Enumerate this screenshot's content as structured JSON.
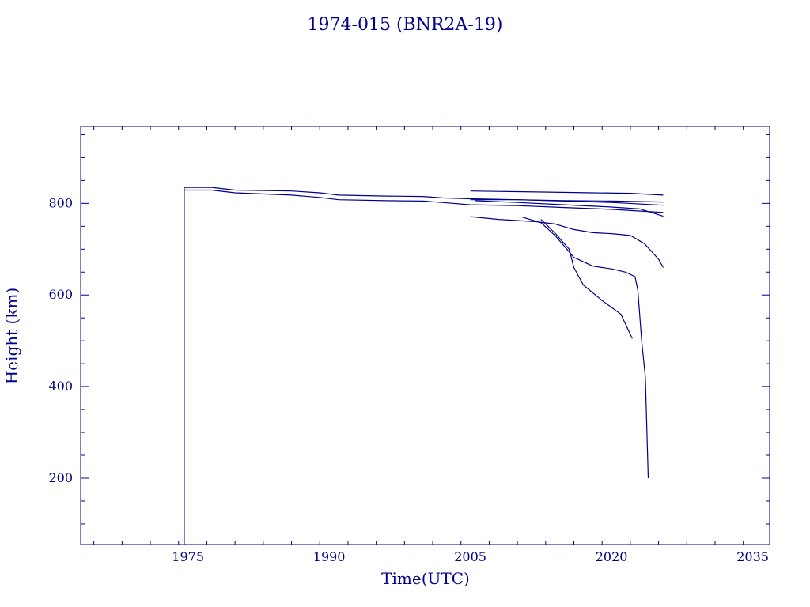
{
  "chart_data": {
    "type": "line",
    "title": "1974-015 (BNR2A-19)",
    "xlabel": "Time(UTC)",
    "ylabel": "Height (km)",
    "xlim": [
      1963.6,
      2036.8
    ],
    "ylim": [
      55,
      968
    ],
    "x_ticks": [
      1975,
      1990,
      2005,
      2020,
      2035
    ],
    "x_tick_labels": [
      "1975",
      "1990",
      "2005",
      "2020",
      "2035"
    ],
    "y_ticks": [
      200,
      400,
      600,
      800
    ],
    "y_tick_labels": [
      "200",
      "400",
      "600",
      "800"
    ],
    "grid": false,
    "color": "#00008b",
    "series": [
      {
        "x": [
          1974.6,
          1974.6,
          1977.5,
          1980,
          1986,
          1989,
          1991,
          1996,
          2000,
          2002,
          2005,
          2010,
          2015,
          2020,
          2025.5
        ],
        "y": [
          55,
          835,
          835,
          829,
          827,
          823,
          818,
          816,
          815,
          812,
          810,
          808,
          805,
          802,
          796
        ]
      },
      {
        "x": [
          1974.6,
          1977.5,
          1980,
          1986,
          1989,
          1991,
          1996,
          2000,
          2002,
          2005,
          2010,
          2015,
          2020,
          2025.5
        ],
        "y": [
          829,
          829,
          823,
          818,
          813,
          808,
          806,
          805,
          802,
          797,
          795,
          791,
          787,
          780
        ]
      },
      {
        "x": [
          2005,
          2012,
          2018,
          2022,
          2025.5
        ],
        "y": [
          827,
          825,
          823,
          822,
          818
        ]
      },
      {
        "x": [
          2005,
          2010,
          2015,
          2020,
          2025.5
        ],
        "y": [
          808,
          808,
          806,
          805,
          803
        ]
      },
      {
        "x": [
          2005.5,
          2010,
          2015,
          2020,
          2023,
          2025.5
        ],
        "y": [
          806,
          802,
          797,
          792,
          788,
          772
        ]
      },
      {
        "x": [
          2005,
          2008,
          2012,
          2014,
          2016,
          2018,
          2020,
          2022,
          2023.5,
          2025,
          2025.5
        ],
        "y": [
          771,
          765,
          760,
          755,
          743,
          736,
          734,
          730,
          712,
          678,
          660
        ]
      },
      {
        "x": [
          2010.5,
          2012.5,
          2014,
          2016,
          2018,
          2020,
          2021.5,
          2022.5,
          2022.8,
          2023.2,
          2023.6,
          2023.9
        ],
        "y": [
          770,
          758,
          730,
          682,
          663,
          657,
          650,
          640,
          610,
          500,
          420,
          200
        ]
      },
      {
        "x": [
          2012.5,
          2014,
          2015.5,
          2016,
          2017,
          2019,
          2021,
          2022.2
        ],
        "y": [
          765,
          735,
          700,
          660,
          622,
          588,
          558,
          505
        ]
      }
    ]
  }
}
